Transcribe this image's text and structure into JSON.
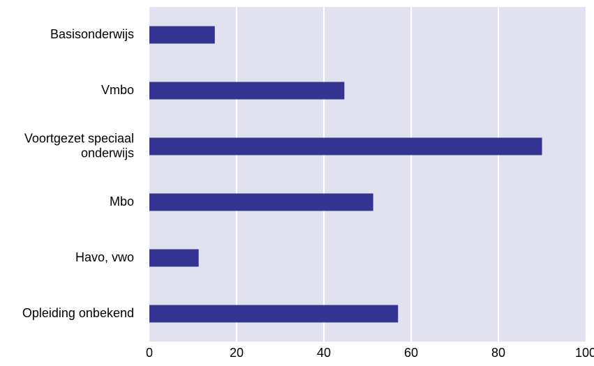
{
  "chart_data": {
    "type": "bar",
    "orientation": "horizontal",
    "categories": [
      [
        "Basisonderwijs"
      ],
      [
        "Vmbo"
      ],
      [
        "Voortgezet speciaal",
        "onderwijs"
      ],
      [
        "Mbo"
      ],
      [
        "Havo, vwo"
      ],
      [
        "Opleiding onbekend"
      ]
    ],
    "values": [
      15,
      44.7,
      90,
      51.3,
      11.3,
      57
    ],
    "xlim": [
      0,
      100
    ],
    "xticks": [
      "0",
      "20",
      "40",
      "60",
      "80",
      "100"
    ],
    "grid": true,
    "legend": "none",
    "colors": {
      "bar": "#333391",
      "plot_background": "#e2e1f0",
      "grid": "#ffffff",
      "text": "#000000"
    }
  }
}
